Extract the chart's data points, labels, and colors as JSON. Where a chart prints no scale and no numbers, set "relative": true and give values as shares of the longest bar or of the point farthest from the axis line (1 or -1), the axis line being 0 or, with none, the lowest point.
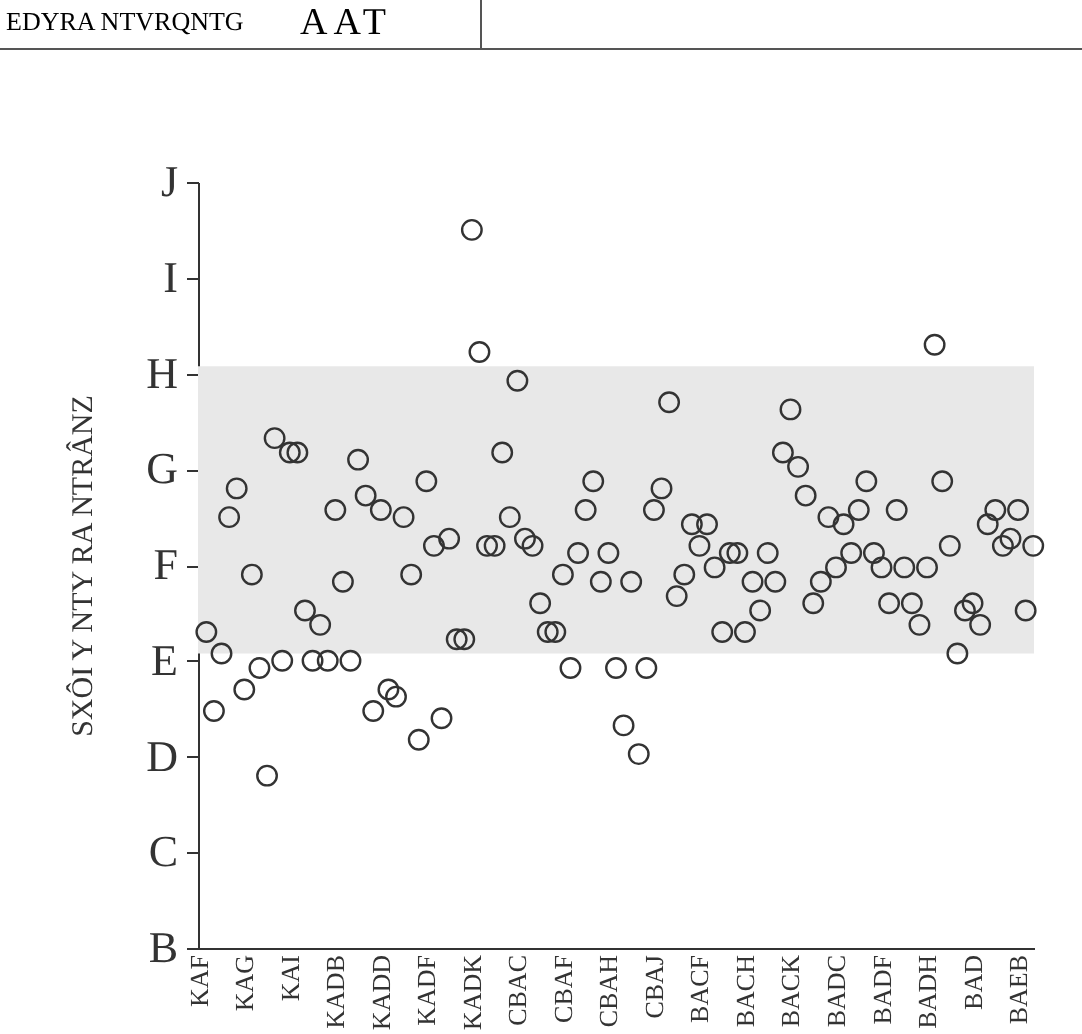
{
  "chart_data": {
    "type": "scatter",
    "title": "AAT",
    "subtitle": "EDYRA NTVRQNTG",
    "ylabel": "SXÔI Y NTY RA NTRÂNZ",
    "relative": true,
    "categories": [
      "KAF",
      null,
      null,
      null,
      null,
      null,
      "KAG",
      null,
      null,
      null,
      null,
      null,
      "KAI",
      null,
      null,
      null,
      null,
      null,
      "KADB",
      null,
      null,
      null,
      null,
      null,
      "KADD",
      null,
      null,
      null,
      null,
      null,
      "KADF",
      null,
      null,
      null,
      null,
      null,
      "KADK",
      null,
      null,
      null,
      null,
      null,
      "CBAC",
      null,
      null,
      null,
      null,
      null,
      "CBAF",
      null,
      null,
      null,
      null,
      null,
      "CBAH",
      null,
      null,
      null,
      null,
      null,
      "CBAJ",
      null,
      null,
      null,
      null,
      null,
      "BACF",
      null,
      null,
      null,
      null,
      null,
      "BACH",
      null,
      null,
      null,
      null,
      null,
      "BACK",
      null,
      null,
      null,
      null,
      null,
      "BADC",
      null,
      null,
      null,
      null,
      null,
      "BADF",
      null,
      null,
      null,
      null,
      null,
      "BADH",
      null,
      null,
      null,
      null,
      null,
      "BAD",
      null,
      null,
      null,
      null,
      null,
      "BAEB",
      null,
      null
    ],
    "series": [
      {
        "color": "#333333",
        "values": [
          null,
          0.44,
          0.33,
          0.41,
          0.6,
          0.64,
          0.36,
          0.52,
          0.39,
          0.24,
          0.71,
          0.4,
          0.69,
          0.69,
          0.47,
          0.4,
          0.45,
          0.4,
          0.61,
          0.51,
          0.4,
          0.68,
          0.63,
          0.33,
          0.61,
          0.36,
          0.35,
          0.6,
          0.52,
          0.29,
          0.65,
          0.56,
          0.32,
          0.57,
          0.43,
          0.43,
          1,
          0.83,
          0.56,
          0.56,
          0.69,
          0.6,
          0.79,
          0.57,
          0.56,
          0.48,
          0.44,
          0.44,
          0.52,
          0.39,
          0.55,
          0.61,
          0.65,
          0.51,
          0.55,
          0.39,
          0.31,
          0.51,
          0.27,
          0.39,
          0.61,
          0.64,
          0.76,
          0.49,
          0.52,
          0.59,
          0.56,
          0.59,
          0.53,
          0.44,
          0.55,
          0.55,
          0.44,
          0.51,
          0.47,
          0.55,
          0.51,
          0.69,
          0.75,
          0.67,
          0.63,
          0.48,
          0.51,
          0.6,
          0.53,
          0.59,
          0.55,
          0.61,
          0.65,
          0.55,
          0.53,
          0.48,
          0.61,
          0.53,
          0.48,
          0.45,
          0.53,
          0.84,
          0.65,
          0.56,
          0.41,
          0.47,
          0.48,
          0.45,
          0.59,
          0.61,
          0.56,
          0.57,
          0.61,
          0.47,
          0.56
        ]
      }
    ],
    "annotations": [
      "J",
      "I",
      "H",
      "G",
      "F",
      "E",
      "D",
      "C",
      "B"
    ],
    "bands": [
      {
        "axis": "y",
        "from": 0.41,
        "to": 0.81,
        "color": "#e8e8e8"
      }
    ],
    "marker": "circle",
    "grid": false
  }
}
